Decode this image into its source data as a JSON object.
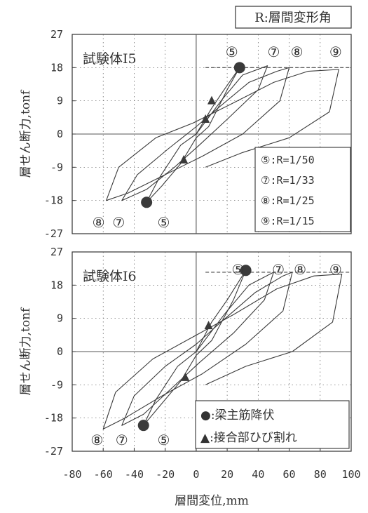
{
  "chart_data": {
    "type": "line",
    "corner_note": "R:層間変形角",
    "xlabel": "層間変位,mm",
    "ylabel": "層せん断力,tonf",
    "xlim": [
      -80,
      100
    ],
    "ylim": [
      -27,
      27
    ],
    "x_ticks": [
      "-80",
      "-60",
      "-40",
      "-20",
      "0",
      "20",
      "40",
      "60",
      "80",
      "100"
    ],
    "y_ticks": [
      "27",
      "18",
      "9",
      "0",
      "-9",
      "-18",
      "-27"
    ],
    "grid": "dotted",
    "panels": [
      {
        "title": "試験体Ⅰ5",
        "capacity_line_y": 18,
        "top_cycle_labels": [
          {
            "text": "⑤",
            "x": 23
          },
          {
            "text": "⑦",
            "x": 50
          },
          {
            "text": "⑧",
            "x": 65
          },
          {
            "text": "⑨",
            "x": 90
          }
        ],
        "bottom_cycle_labels": [
          {
            "text": "⑧",
            "x": -63
          },
          {
            "text": "⑦",
            "x": -50
          },
          {
            "text": "⑤",
            "x": -21
          }
        ],
        "legend": [
          "⑤:R=1/50",
          "⑦:R=1/33",
          "⑧:R=1/25",
          "⑨:R=1/15"
        ],
        "markers": [
          {
            "shape": "circle",
            "x": 28,
            "y": 18
          },
          {
            "shape": "circle",
            "x": -32,
            "y": -18.5
          },
          {
            "shape": "triangle",
            "x": 10,
            "y": 9
          },
          {
            "shape": "triangle",
            "x": 6,
            "y": 4
          },
          {
            "shape": "triangle",
            "x": -8,
            "y": -7
          }
        ],
        "loops": [
          [
            [
              0,
              0
            ],
            [
              10,
              7
            ],
            [
              18,
              12
            ],
            [
              28,
              18
            ],
            [
              20,
              12
            ],
            [
              8,
              2
            ],
            [
              0,
              -1
            ],
            [
              -10,
              -8
            ],
            [
              -22,
              -14
            ],
            [
              -32,
              -18.5
            ],
            [
              -24,
              -12
            ],
            [
              -10,
              -3
            ],
            [
              0,
              0
            ]
          ],
          [
            [
              0,
              0
            ],
            [
              16,
              9
            ],
            [
              30,
              16
            ],
            [
              46,
              18.5
            ],
            [
              40,
              12
            ],
            [
              20,
              4
            ],
            [
              2,
              -3
            ],
            [
              -14,
              -9
            ],
            [
              -32,
              -15
            ],
            [
              -48,
              -18
            ],
            [
              -38,
              -11
            ],
            [
              -18,
              -4
            ],
            [
              0,
              2
            ],
            [
              14,
              7
            ]
          ],
          [
            [
              14,
              7
            ],
            [
              34,
              14
            ],
            [
              52,
              17
            ],
            [
              60,
              18
            ],
            [
              54,
              9
            ],
            [
              30,
              0
            ],
            [
              4,
              -6
            ],
            [
              -20,
              -11
            ],
            [
              -44,
              -16
            ],
            [
              -58,
              -18
            ],
            [
              -50,
              -9
            ],
            [
              -26,
              -1
            ],
            [
              -2,
              3
            ],
            [
              22,
              8
            ]
          ],
          [
            [
              22,
              8
            ],
            [
              50,
              14
            ],
            [
              72,
              17
            ],
            [
              92,
              17.5
            ],
            [
              86,
              6
            ],
            [
              60,
              -1
            ],
            [
              30,
              -5
            ],
            [
              6,
              -9
            ]
          ]
        ]
      },
      {
        "title": "試験体Ⅰ6",
        "capacity_line_y": 21.5,
        "top_cycle_labels": [
          {
            "text": "⑤",
            "x": 27
          },
          {
            "text": "⑦",
            "x": 53
          },
          {
            "text": "⑧",
            "x": 67
          },
          {
            "text": "⑨",
            "x": 90
          }
        ],
        "bottom_cycle_labels": [
          {
            "text": "⑧",
            "x": -64
          },
          {
            "text": "⑦",
            "x": -48
          },
          {
            "text": "⑤",
            "x": -21
          }
        ],
        "legend": [
          "●:梁主筋降伏",
          "▲:接合部ひび割れ"
        ],
        "markers": [
          {
            "shape": "circle",
            "x": 32,
            "y": 22
          },
          {
            "shape": "circle",
            "x": -34,
            "y": -20
          },
          {
            "shape": "triangle",
            "x": 8,
            "y": 7
          },
          {
            "shape": "triangle",
            "x": -7,
            "y": -7
          }
        ],
        "loops": [
          [
            [
              0,
              0
            ],
            [
              10,
              8
            ],
            [
              20,
              14
            ],
            [
              32,
              22
            ],
            [
              24,
              14
            ],
            [
              10,
              3
            ],
            [
              0,
              -1
            ],
            [
              -10,
              -8
            ],
            [
              -24,
              -15
            ],
            [
              -34,
              -20
            ],
            [
              -26,
              -13
            ],
            [
              -12,
              -4
            ],
            [
              0,
              0
            ]
          ],
          [
            [
              0,
              0
            ],
            [
              18,
              10
            ],
            [
              34,
              18
            ],
            [
              50,
              21.5
            ],
            [
              44,
              14
            ],
            [
              24,
              5
            ],
            [
              2,
              -3
            ],
            [
              -16,
              -10
            ],
            [
              -34,
              -17
            ],
            [
              -48,
              -20
            ],
            [
              -40,
              -12
            ],
            [
              -20,
              -4
            ],
            [
              0,
              2
            ],
            [
              16,
              8
            ]
          ],
          [
            [
              16,
              8
            ],
            [
              38,
              16
            ],
            [
              56,
              20.5
            ],
            [
              62,
              21.5
            ],
            [
              56,
              11
            ],
            [
              32,
              2
            ],
            [
              4,
              -6
            ],
            [
              -22,
              -12
            ],
            [
              -46,
              -18
            ],
            [
              -60,
              -21
            ],
            [
              -52,
              -11
            ],
            [
              -28,
              -2
            ],
            [
              -2,
              4
            ],
            [
              24,
              10
            ]
          ],
          [
            [
              24,
              10
            ],
            [
              52,
              17
            ],
            [
              76,
              20.5
            ],
            [
              94,
              21
            ],
            [
              88,
              8
            ],
            [
              62,
              0
            ],
            [
              32,
              -4
            ],
            [
              6,
              -9
            ]
          ]
        ]
      }
    ]
  }
}
